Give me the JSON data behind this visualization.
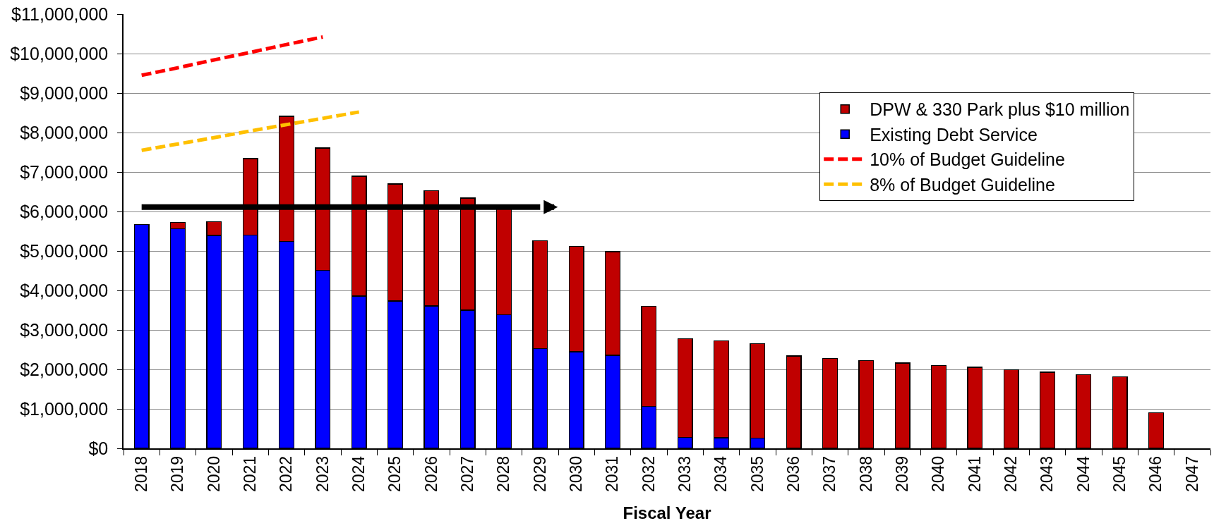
{
  "chart_data": {
    "type": "bar",
    "stacked": true,
    "xlabel": "Fiscal Year",
    "categories": [
      "2018",
      "2019",
      "2020",
      "2021",
      "2022",
      "2023",
      "2024",
      "2025",
      "2026",
      "2027",
      "2028",
      "2029",
      "2030",
      "2031",
      "2032",
      "2033",
      "2034",
      "2035",
      "2036",
      "2037",
      "2038",
      "2039",
      "2040",
      "2041",
      "2042",
      "2043",
      "2044",
      "2045",
      "2046",
      "2047"
    ],
    "series": [
      {
        "name": "Existing Debt Service",
        "color": "#0000ff",
        "values": [
          5670000,
          5560000,
          5390000,
          5400000,
          5240000,
          4510000,
          3860000,
          3730000,
          3610000,
          3500000,
          3380000,
          2530000,
          2450000,
          2360000,
          1060000,
          280000,
          270000,
          260000,
          null,
          null,
          null,
          null,
          null,
          null,
          null,
          null,
          null,
          null,
          null,
          null
        ]
      },
      {
        "name": "DPW & 330 Park plus $10 million",
        "color": "#c00000",
        "values": [
          null,
          160000,
          350000,
          1940000,
          3170000,
          3100000,
          3030000,
          2970000,
          2920000,
          2840000,
          2720000,
          2730000,
          2670000,
          2620000,
          2540000,
          2500000,
          2450000,
          2390000,
          2340000,
          2280000,
          2220000,
          2160000,
          2100000,
          2050000,
          1990000,
          1930000,
          1870000,
          1810000,
          900000,
          null
        ]
      },
      {
        "name": "10% of Budget Guideline",
        "type": "line",
        "color": "#ff0000",
        "line_style": "dashed",
        "values": [
          9450000,
          9640000,
          9840000,
          10030000,
          10230000,
          10420000,
          null,
          null,
          null,
          null,
          null,
          null,
          null,
          null,
          null,
          null,
          null,
          null,
          null,
          null,
          null,
          null,
          null,
          null,
          null,
          null,
          null,
          null,
          null,
          null
        ]
      },
      {
        "name": "8% of Budget Guideline",
        "type": "line",
        "color": "#ffc000",
        "line_style": "dashed",
        "values": [
          7550000,
          7710000,
          7870000,
          8040000,
          8200000,
          8360000,
          8520000,
          null,
          null,
          null,
          null,
          null,
          null,
          null,
          null,
          null,
          null,
          null,
          null,
          null,
          null,
          null,
          null,
          null,
          null,
          null,
          null,
          null,
          null,
          null
        ]
      },
      {
        "type": "line",
        "color": "#000000",
        "values": [
          6110000,
          6110000,
          6110000,
          6110000,
          6110000,
          6110000,
          6110000,
          6110000,
          6110000,
          6110000,
          6110000,
          6110000,
          null,
          null,
          null,
          null,
          null,
          null,
          null,
          null,
          null,
          null,
          null,
          null,
          null,
          null,
          null,
          null,
          null,
          null
        ]
      }
    ],
    "ylim": [
      0,
      11000000
    ],
    "yticks": [
      {
        "value": 0,
        "label": "$0"
      },
      {
        "value": 1000000,
        "label": "$1,000,000"
      },
      {
        "value": 2000000,
        "label": "$2,000,000"
      },
      {
        "value": 3000000,
        "label": "$3,000,000"
      },
      {
        "value": 4000000,
        "label": "$4,000,000"
      },
      {
        "value": 5000000,
        "label": "$5,000,000"
      },
      {
        "value": 6000000,
        "label": "$6,000,000"
      },
      {
        "value": 7000000,
        "label": "$7,000,000"
      },
      {
        "value": 8000000,
        "label": "$8,000,000"
      },
      {
        "value": 9000000,
        "label": "$9,000,000"
      },
      {
        "value": 10000000,
        "label": "$10,000,000"
      },
      {
        "value": 11000000,
        "label": "$11,000,000"
      }
    ],
    "grid": "y",
    "legend": "top right"
  }
}
